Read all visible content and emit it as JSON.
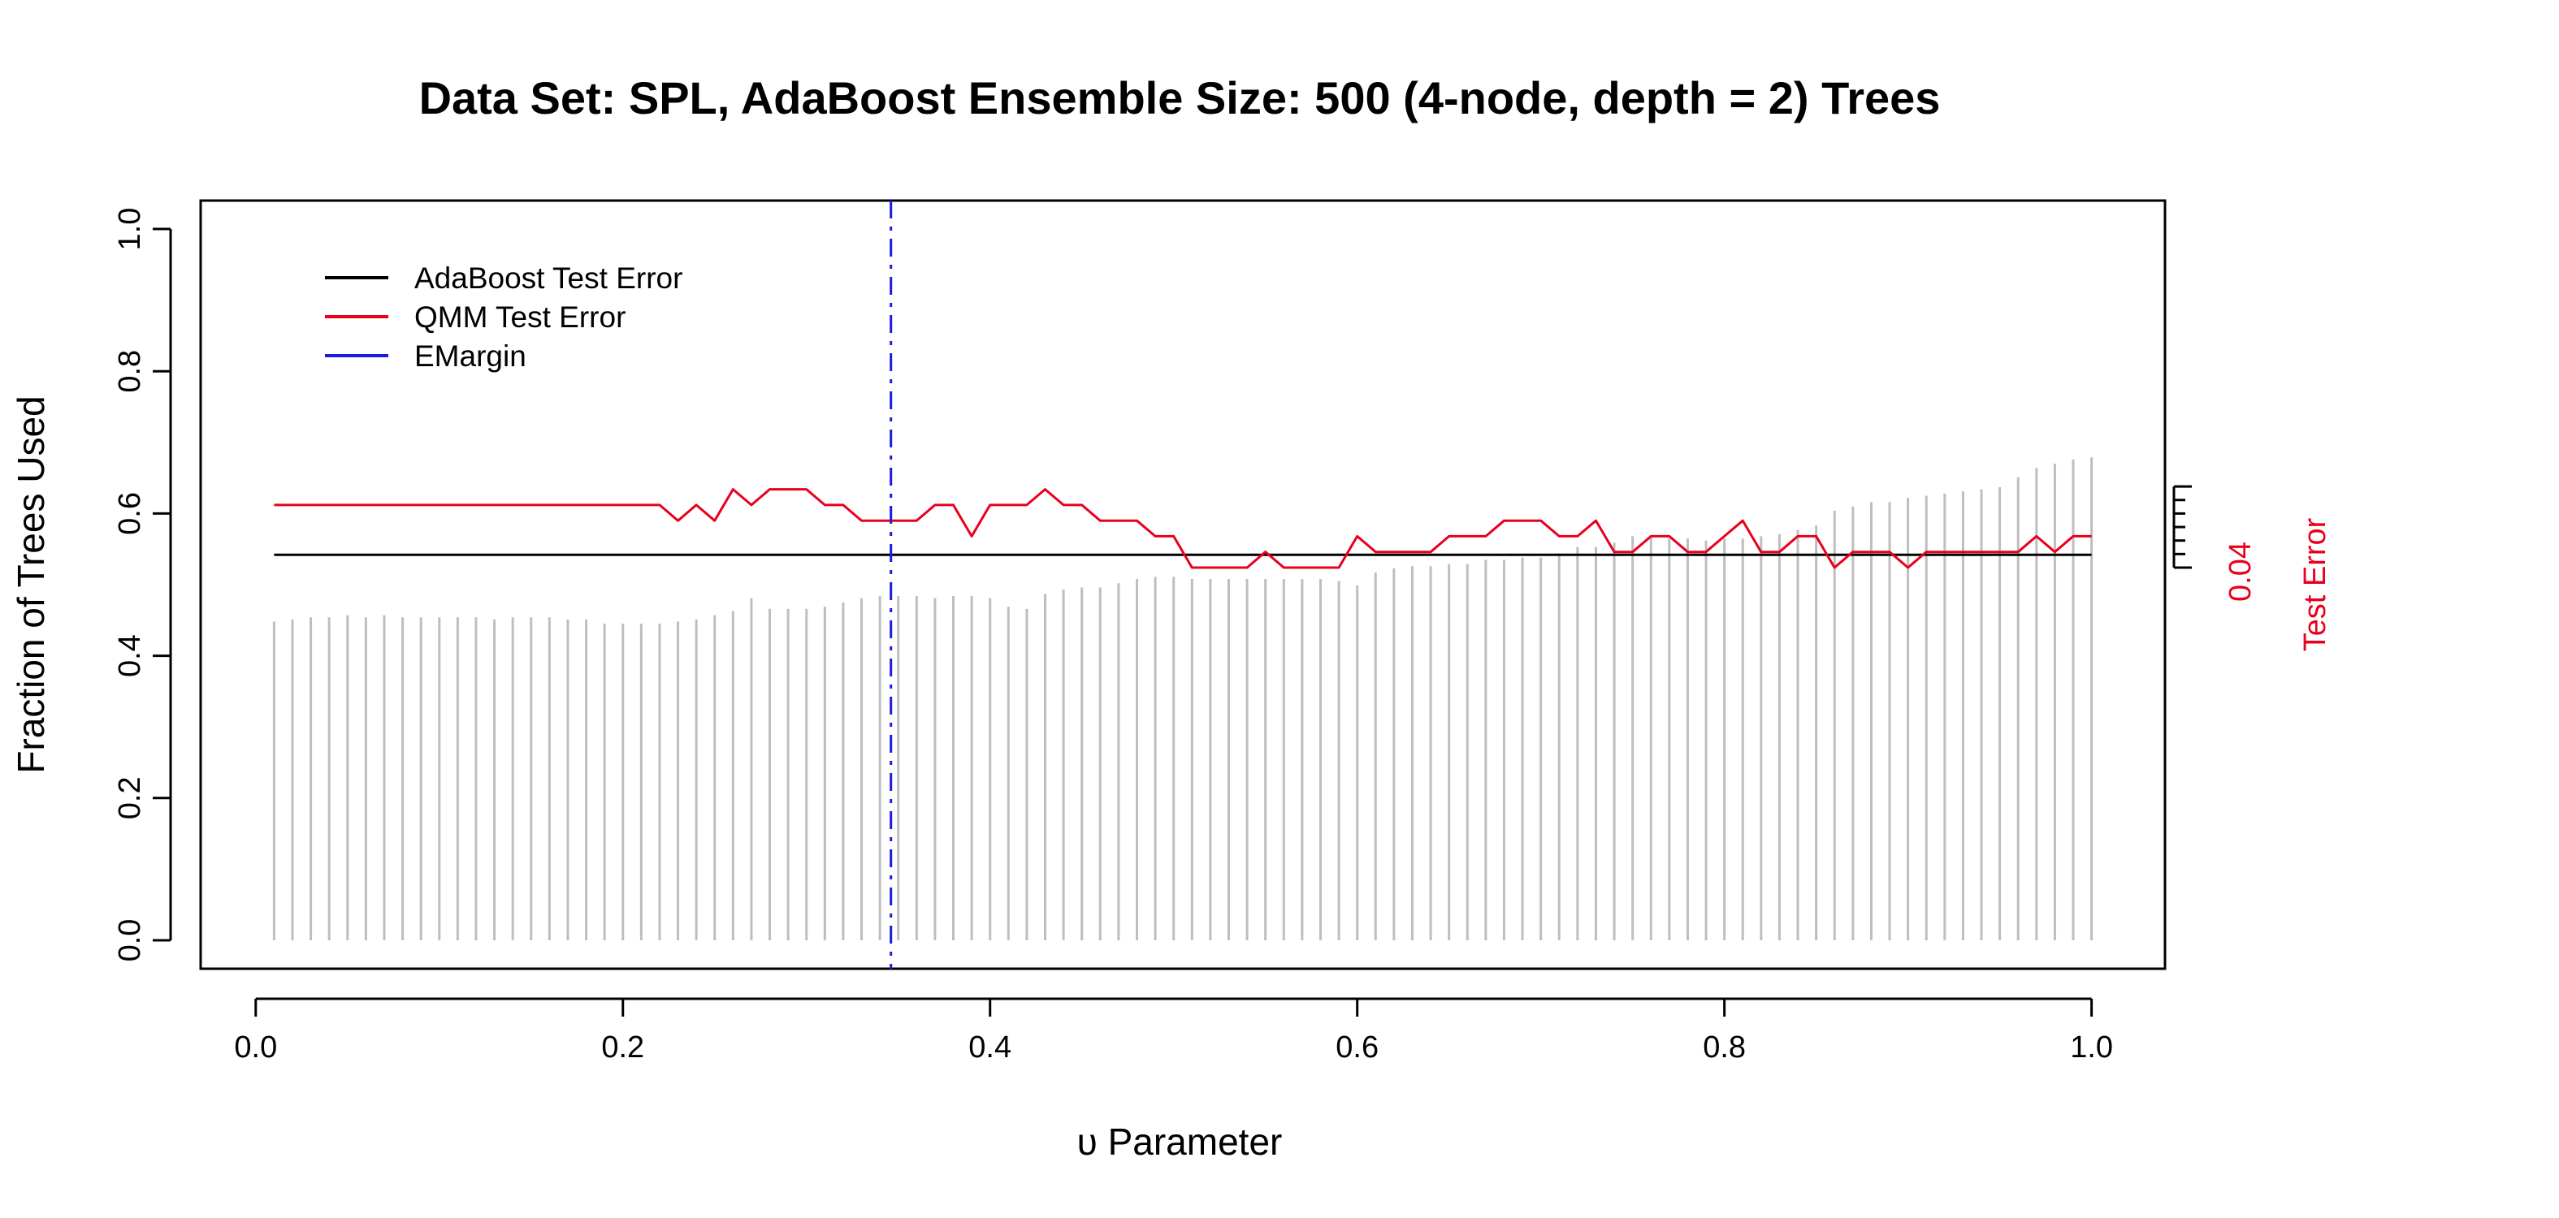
{
  "chart_data": {
    "type": "line",
    "title": "Data Set: SPL, AdaBoost Ensemble Size: 500 (4-node, depth = 2) Trees",
    "xlabel": "υ Parameter",
    "ylabel": "Fraction of Trees Used",
    "y2label": "Test Error",
    "xlim": [
      -0.03,
      1.04
    ],
    "ylim": [
      -0.04,
      1.04
    ],
    "x_ticks": [
      "0.0",
      "0.2",
      "0.4",
      "0.6",
      "0.8",
      "1.0"
    ],
    "y_ticks": [
      "0.0",
      "0.2",
      "0.4",
      "0.6",
      "0.8",
      "1.0"
    ],
    "y2_tick_label": "0.04",
    "legend": {
      "position": "top-left",
      "entries": [
        {
          "label": "AdaBoost Test Error",
          "color": "#000000"
        },
        {
          "label": "QMM Test Error",
          "color": "#e8001c"
        },
        {
          "label": "EMargin",
          "color": "#1a1adf"
        }
      ]
    },
    "x": [
      0.01,
      0.02,
      0.03,
      0.04,
      0.05,
      0.06,
      0.07,
      0.08,
      0.09,
      0.1,
      0.11,
      0.12,
      0.13,
      0.14,
      0.15,
      0.16,
      0.17,
      0.18,
      0.19,
      0.2,
      0.21,
      0.22,
      0.23,
      0.24,
      0.25,
      0.26,
      0.27,
      0.28,
      0.29,
      0.3,
      0.31,
      0.32,
      0.33,
      0.34,
      0.35,
      0.36,
      0.37,
      0.38,
      0.39,
      0.4,
      0.41,
      0.42,
      0.43,
      0.44,
      0.45,
      0.46,
      0.47,
      0.48,
      0.49,
      0.5,
      0.51,
      0.52,
      0.53,
      0.54,
      0.55,
      0.56,
      0.57,
      0.58,
      0.59,
      0.6,
      0.61,
      0.62,
      0.63,
      0.64,
      0.65,
      0.66,
      0.67,
      0.68,
      0.69,
      0.7,
      0.71,
      0.72,
      0.73,
      0.74,
      0.75,
      0.76,
      0.77,
      0.78,
      0.79,
      0.8,
      0.81,
      0.82,
      0.83,
      0.84,
      0.85,
      0.86,
      0.87,
      0.88,
      0.89,
      0.9,
      0.91,
      0.92,
      0.93,
      0.94,
      0.95,
      0.96,
      0.97,
      0.98,
      0.99,
      1.0
    ],
    "series": [
      {
        "name": "Fraction of Trees Used",
        "color": "#bebebe",
        "kind": "vlines",
        "values": [
          0.448,
          0.451,
          0.454,
          0.454,
          0.457,
          0.454,
          0.457,
          0.454,
          0.454,
          0.454,
          0.454,
          0.454,
          0.451,
          0.454,
          0.454,
          0.454,
          0.451,
          0.451,
          0.445,
          0.445,
          0.445,
          0.445,
          0.448,
          0.451,
          0.457,
          0.463,
          0.481,
          0.466,
          0.466,
          0.466,
          0.469,
          0.475,
          0.481,
          0.484,
          0.484,
          0.484,
          0.481,
          0.484,
          0.484,
          0.481,
          0.469,
          0.466,
          0.487,
          0.493,
          0.496,
          0.496,
          0.502,
          0.508,
          0.511,
          0.511,
          0.508,
          0.508,
          0.508,
          0.508,
          0.508,
          0.508,
          0.508,
          0.508,
          0.505,
          0.499,
          0.517,
          0.523,
          0.526,
          0.526,
          0.529,
          0.529,
          0.535,
          0.535,
          0.538,
          0.538,
          0.544,
          0.553,
          0.553,
          0.559,
          0.568,
          0.568,
          0.565,
          0.565,
          0.562,
          0.565,
          0.565,
          0.568,
          0.571,
          0.577,
          0.583,
          0.604,
          0.61,
          0.616,
          0.616,
          0.622,
          0.625,
          0.628,
          0.631,
          0.634,
          0.637,
          0.651,
          0.664,
          0.67,
          0.676,
          0.679
        ]
      },
      {
        "name": "AdaBoost Test Error",
        "color": "#000000",
        "kind": "hline",
        "y": 0.542
      },
      {
        "name": "QMM Test Error",
        "color": "#e8001c",
        "kind": "line",
        "values": [
          0.612,
          0.612,
          0.612,
          0.612,
          0.612,
          0.612,
          0.612,
          0.612,
          0.612,
          0.612,
          0.612,
          0.612,
          0.612,
          0.612,
          0.612,
          0.612,
          0.612,
          0.612,
          0.612,
          0.612,
          0.612,
          0.612,
          0.59,
          0.612,
          0.59,
          0.634,
          0.612,
          0.634,
          0.634,
          0.634,
          0.612,
          0.612,
          0.59,
          0.59,
          0.59,
          0.59,
          0.612,
          0.612,
          0.568,
          0.612,
          0.612,
          0.612,
          0.634,
          0.612,
          0.612,
          0.59,
          0.59,
          0.59,
          0.568,
          0.568,
          0.524,
          0.524,
          0.524,
          0.524,
          0.546,
          0.524,
          0.524,
          0.524,
          0.524,
          0.568,
          0.546,
          0.546,
          0.546,
          0.546,
          0.568,
          0.568,
          0.568,
          0.59,
          0.59,
          0.59,
          0.568,
          0.568,
          0.59,
          0.546,
          0.546,
          0.568,
          0.568,
          0.546,
          0.546,
          0.568,
          0.59,
          0.546,
          0.546,
          0.568,
          0.568,
          0.524,
          0.546,
          0.546,
          0.546,
          0.524,
          0.546,
          0.546,
          0.546,
          0.546,
          0.546,
          0.546,
          0.568,
          0.546,
          0.568,
          0.568
        ]
      },
      {
        "name": "EMargin",
        "color": "#1a1adf",
        "kind": "vline-dashdot",
        "x": 0.346
      }
    ]
  }
}
